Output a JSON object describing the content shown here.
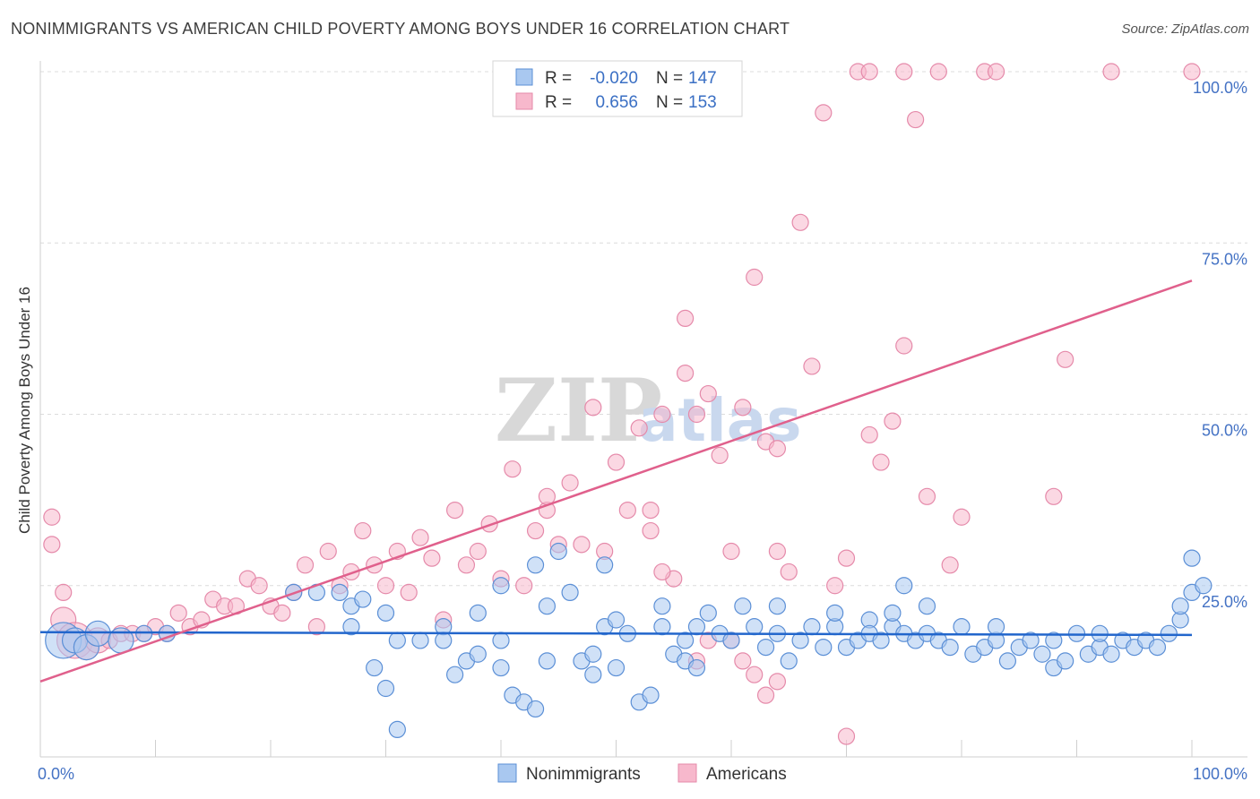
{
  "title": "NONIMMIGRANTS VS AMERICAN CHILD POVERTY AMONG BOYS UNDER 16 CORRELATION CHART",
  "source": "Source: ZipAtlas.com",
  "watermark": {
    "zip": "ZIP",
    "atlas": "atlas"
  },
  "colors": {
    "nonimmigrants_fill": "#a9c8f0",
    "nonimmigrants_stroke": "#5b8fd6",
    "nonimmigrants_line": "#2266cc",
    "americans_fill": "#f7b8cc",
    "americans_stroke": "#e58aaa",
    "americans_line": "#e0608c",
    "tick_label": "#4472c4",
    "grid": "#dcdcdc"
  },
  "legend": {
    "rows": [
      {
        "r_label": "R =",
        "r_value": "-0.020",
        "n_label": "N =",
        "n_value": "147"
      },
      {
        "r_label": "R =",
        "r_value": "0.656",
        "n_label": "N =",
        "n_value": "153"
      }
    ]
  },
  "bottom_legend": [
    "Nonimmigrants",
    "Americans"
  ],
  "chart_data": {
    "type": "scatter",
    "title": "NONIMMIGRANTS VS AMERICAN CHILD POVERTY AMONG BOYS UNDER 16 CORRELATION CHART",
    "xlabel": "",
    "ylabel": "Child Poverty Among Boys Under 16",
    "xlim": [
      0,
      100
    ],
    "ylim": [
      0,
      100
    ],
    "x_tick_labels": [
      "0.0%",
      "100.0%"
    ],
    "y_tick_labels": [
      "25.0%",
      "50.0%",
      "75.0%",
      "100.0%"
    ],
    "y_ticks": [
      25,
      50,
      75,
      100
    ],
    "grid": true,
    "legend_position": "top-center",
    "series": [
      {
        "name": "Nonimmigrants",
        "r": -0.02,
        "n": 147,
        "trend": {
          "x": [
            0,
            100
          ],
          "y": [
            18.2,
            17.8
          ]
        },
        "points": [
          [
            2,
            17,
            3
          ],
          [
            3,
            17,
            2
          ],
          [
            4,
            16,
            2
          ],
          [
            5,
            18,
            2
          ],
          [
            7,
            17,
            2
          ],
          [
            9,
            18,
            1
          ],
          [
            11,
            18,
            1
          ],
          [
            22,
            24,
            1
          ],
          [
            24,
            24,
            1
          ],
          [
            26,
            24,
            1
          ],
          [
            27,
            22,
            1
          ],
          [
            28,
            23,
            1
          ],
          [
            27,
            19,
            1
          ],
          [
            29,
            13,
            1
          ],
          [
            31,
            17,
            1
          ],
          [
            30,
            21,
            1
          ],
          [
            33,
            17,
            1
          ],
          [
            30,
            10,
            1
          ],
          [
            31,
            4,
            1
          ],
          [
            35,
            19,
            1
          ],
          [
            35,
            17,
            1
          ],
          [
            36,
            12,
            1
          ],
          [
            37,
            14,
            1
          ],
          [
            38,
            21,
            1
          ],
          [
            38,
            15,
            1
          ],
          [
            40,
            13,
            1
          ],
          [
            40,
            17,
            1
          ],
          [
            40,
            25,
            1
          ],
          [
            41,
            9,
            1
          ],
          [
            42,
            8,
            1
          ],
          [
            43,
            7,
            1
          ],
          [
            43,
            28,
            1
          ],
          [
            44,
            22,
            1
          ],
          [
            44,
            14,
            1
          ],
          [
            45,
            30,
            1
          ],
          [
            46,
            24,
            1
          ],
          [
            47,
            14,
            1
          ],
          [
            48,
            12,
            1
          ],
          [
            48,
            15,
            1
          ],
          [
            49,
            28,
            1
          ],
          [
            49,
            19,
            1
          ],
          [
            50,
            20,
            1
          ],
          [
            50,
            13,
            1
          ],
          [
            51,
            18,
            1
          ],
          [
            52,
            8,
            1
          ],
          [
            53,
            9,
            1
          ],
          [
            54,
            22,
            1
          ],
          [
            54,
            19,
            1
          ],
          [
            55,
            15,
            1
          ],
          [
            56,
            14,
            1
          ],
          [
            56,
            17,
            1
          ],
          [
            57,
            19,
            1
          ],
          [
            57,
            13,
            1
          ],
          [
            58,
            21,
            1
          ],
          [
            59,
            18,
            1
          ],
          [
            60,
            17,
            1
          ],
          [
            61,
            22,
            1
          ],
          [
            62,
            19,
            1
          ],
          [
            63,
            16,
            1
          ],
          [
            64,
            22,
            1
          ],
          [
            64,
            18,
            1
          ],
          [
            65,
            14,
            1
          ],
          [
            66,
            17,
            1
          ],
          [
            67,
            19,
            1
          ],
          [
            68,
            16,
            1
          ],
          [
            69,
            19,
            1
          ],
          [
            69,
            21,
            1
          ],
          [
            70,
            16,
            1
          ],
          [
            71,
            17,
            1
          ],
          [
            72,
            20,
            1
          ],
          [
            72,
            18,
            1
          ],
          [
            73,
            17,
            1
          ],
          [
            74,
            19,
            1
          ],
          [
            74,
            21,
            1
          ],
          [
            75,
            18,
            1
          ],
          [
            75,
            25,
            1
          ],
          [
            76,
            17,
            1
          ],
          [
            77,
            22,
            1
          ],
          [
            77,
            18,
            1
          ],
          [
            78,
            17,
            1
          ],
          [
            79,
            16,
            1
          ],
          [
            80,
            19,
            1
          ],
          [
            81,
            15,
            1
          ],
          [
            82,
            16,
            1
          ],
          [
            83,
            17,
            1
          ],
          [
            83,
            19,
            1
          ],
          [
            84,
            14,
            1
          ],
          [
            85,
            16,
            1
          ],
          [
            86,
            17,
            1
          ],
          [
            87,
            15,
            1
          ],
          [
            88,
            17,
            1
          ],
          [
            88,
            13,
            1
          ],
          [
            89,
            14,
            1
          ],
          [
            90,
            18,
            1
          ],
          [
            91,
            15,
            1
          ],
          [
            92,
            16,
            1
          ],
          [
            92,
            18,
            1
          ],
          [
            93,
            15,
            1
          ],
          [
            94,
            17,
            1
          ],
          [
            95,
            16,
            1
          ],
          [
            96,
            17,
            1
          ],
          [
            97,
            16,
            1
          ],
          [
            98,
            18,
            1
          ],
          [
            99,
            20,
            1
          ],
          [
            99,
            22,
            1
          ],
          [
            100,
            24,
            1
          ],
          [
            100,
            29,
            1
          ],
          [
            101,
            25,
            1
          ]
        ]
      },
      {
        "name": "Americans",
        "r": 0.656,
        "n": 153,
        "trend": {
          "x": [
            0,
            100
          ],
          "y": [
            11,
            69.5
          ]
        },
        "points": [
          [
            1,
            35,
            1
          ],
          [
            1,
            31,
            1
          ],
          [
            2,
            24,
            1
          ],
          [
            2,
            20,
            2
          ],
          [
            3,
            17,
            3
          ],
          [
            4,
            16,
            2
          ],
          [
            5,
            17,
            2
          ],
          [
            6,
            17,
            1
          ],
          [
            7,
            18,
            1
          ],
          [
            8,
            18,
            1
          ],
          [
            9,
            18,
            1
          ],
          [
            10,
            19,
            1
          ],
          [
            11,
            18,
            1
          ],
          [
            12,
            21,
            1
          ],
          [
            13,
            19,
            1
          ],
          [
            14,
            20,
            1
          ],
          [
            15,
            23,
            1
          ],
          [
            16,
            22,
            1
          ],
          [
            17,
            22,
            1
          ],
          [
            18,
            26,
            1
          ],
          [
            19,
            25,
            1
          ],
          [
            20,
            22,
            1
          ],
          [
            21,
            21,
            1
          ],
          [
            22,
            24,
            1
          ],
          [
            23,
            28,
            1
          ],
          [
            24,
            19,
            1
          ],
          [
            25,
            30,
            1
          ],
          [
            26,
            25,
            1
          ],
          [
            27,
            27,
            1
          ],
          [
            28,
            33,
            1
          ],
          [
            29,
            28,
            1
          ],
          [
            30,
            25,
            1
          ],
          [
            31,
            30,
            1
          ],
          [
            32,
            24,
            1
          ],
          [
            33,
            32,
            1
          ],
          [
            34,
            29,
            1
          ],
          [
            35,
            20,
            1
          ],
          [
            36,
            36,
            1
          ],
          [
            37,
            28,
            1
          ],
          [
            38,
            30,
            1
          ],
          [
            39,
            34,
            1
          ],
          [
            40,
            26,
            1
          ],
          [
            41,
            42,
            1
          ],
          [
            42,
            25,
            1
          ],
          [
            43,
            33,
            1
          ],
          [
            44,
            36,
            1
          ],
          [
            44,
            38,
            1
          ],
          [
            45,
            31,
            1
          ],
          [
            46,
            40,
            1
          ],
          [
            47,
            31,
            1
          ],
          [
            48,
            51,
            1
          ],
          [
            49,
            30,
            1
          ],
          [
            50,
            43,
            1
          ],
          [
            51,
            36,
            1
          ],
          [
            52,
            48,
            1
          ],
          [
            53,
            36,
            1
          ],
          [
            53,
            33,
            1
          ],
          [
            54,
            50,
            1
          ],
          [
            55,
            26,
            1
          ],
          [
            56,
            64,
            1
          ],
          [
            56,
            56,
            1
          ],
          [
            57,
            50,
            1
          ],
          [
            58,
            53,
            1
          ],
          [
            59,
            44,
            1
          ],
          [
            60,
            30,
            1
          ],
          [
            61,
            51,
            1
          ],
          [
            62,
            70,
            1
          ],
          [
            63,
            46,
            1
          ],
          [
            64,
            30,
            1
          ],
          [
            65,
            27,
            1
          ],
          [
            66,
            78,
            1
          ],
          [
            67,
            57,
            1
          ],
          [
            68,
            94,
            1
          ],
          [
            69,
            25,
            1
          ],
          [
            70,
            29,
            1
          ],
          [
            71,
            100,
            1
          ],
          [
            72,
            47,
            1
          ],
          [
            73,
            43,
            1
          ],
          [
            74,
            49,
            1
          ],
          [
            75,
            60,
            1
          ],
          [
            76,
            93,
            1
          ],
          [
            77,
            38,
            1
          ],
          [
            78,
            100,
            1
          ],
          [
            79,
            28,
            1
          ],
          [
            80,
            35,
            1
          ],
          [
            82,
            100,
            1
          ],
          [
            83,
            100,
            1
          ],
          [
            88,
            38,
            1
          ],
          [
            89,
            58,
            1
          ],
          [
            93,
            100,
            1
          ],
          [
            100,
            100,
            1
          ],
          [
            60,
            17,
            1
          ],
          [
            61,
            14,
            1
          ],
          [
            62,
            12,
            1
          ],
          [
            63,
            9,
            1
          ],
          [
            64,
            11,
            1
          ],
          [
            70,
            3,
            1
          ],
          [
            72,
            100,
            1
          ],
          [
            75,
            100,
            1
          ],
          [
            58,
            17,
            1
          ],
          [
            57,
            14,
            1
          ],
          [
            64,
            45,
            1
          ],
          [
            54,
            27,
            1
          ]
        ]
      }
    ]
  }
}
